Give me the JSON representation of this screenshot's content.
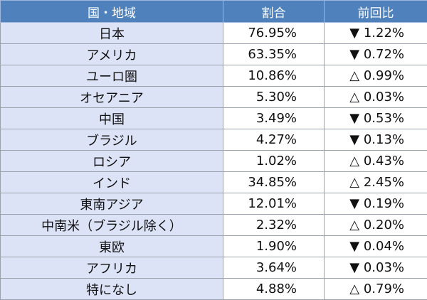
{
  "table": {
    "headers": [
      "国・地域",
      "割合",
      "前回比"
    ],
    "rows": [
      {
        "region": "日本",
        "share": "76.95%",
        "change": "▼ 1.22%"
      },
      {
        "region": "アメリカ",
        "share": "63.35%",
        "change": "▼ 0.72%"
      },
      {
        "region": "ユーロ圏",
        "share": "10.86%",
        "change": "△ 0.99%"
      },
      {
        "region": "オセアニア",
        "share": "5.30%",
        "change": "△ 0.03%"
      },
      {
        "region": "中国",
        "share": "3.49%",
        "change": "▼ 0.53%"
      },
      {
        "region": "ブラジル",
        "share": "4.27%",
        "change": "▼ 0.13%"
      },
      {
        "region": "ロシア",
        "share": "1.02%",
        "change": "△ 0.43%"
      },
      {
        "region": "インド",
        "share": "34.85%",
        "change": "△ 2.45%"
      },
      {
        "region": "東南アジア",
        "share": "12.01%",
        "change": "▼ 0.19%"
      },
      {
        "region": "中南米（ブラジル除く）",
        "share": "2.32%",
        "change": "△ 0.20%"
      },
      {
        "region": "東欧",
        "share": "1.90%",
        "change": "▼ 0.04%"
      },
      {
        "region": "アフリカ",
        "share": "3.64%",
        "change": "▼ 0.03%"
      },
      {
        "region": "特になし",
        "share": "4.88%",
        "change": "△ 0.79%"
      }
    ]
  },
  "colors": {
    "header_bg": "#4f81bd",
    "header_text": "#ffffff",
    "region_cell_bg": "#dde3f7",
    "border": "#9aa3ad"
  }
}
